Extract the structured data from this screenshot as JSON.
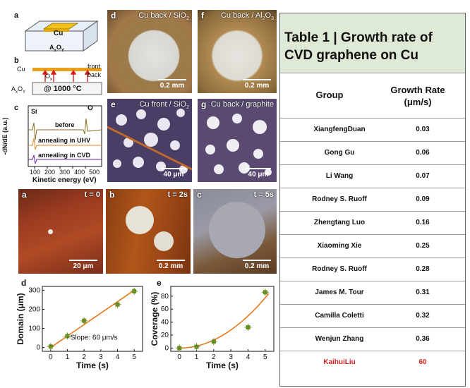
{
  "panel_labels": {
    "a": "a",
    "b": "b",
    "c": "c",
    "d": "d",
    "f": "f",
    "e": "e",
    "g": "g",
    "a2": "a",
    "b2": "b",
    "c2": "c",
    "d2": "d",
    "e2": "e"
  },
  "schematic_a": {
    "cu": "Cu",
    "substrate": "A",
    "substrate_sub1": "x",
    "substrate_o": "O",
    "substrate_sub2": "Y"
  },
  "schematic_b": {
    "cu": "Cu",
    "front": "front",
    "back": "back",
    "o": "O",
    "o_sub": "x",
    "substrate": "A",
    "substrate_sub1": "x",
    "substrate_o": "O",
    "substrate_sub2": "Y",
    "temperature": "@ 1000 °C"
  },
  "spectrum_c": {
    "ylabel": "-dN/dE (a.u.)",
    "xlabel": "Kinetic energy (eV)",
    "ticks": [
      "100",
      "200",
      "300",
      "400",
      "500"
    ],
    "peak_si": "Si",
    "peak_o": "O",
    "traces": [
      "before",
      "annealing in UHV",
      "annealing in CVD"
    ]
  },
  "micrographs_top": [
    {
      "caption": "Cu back / SiO",
      "caption_sub": "2",
      "scale": "0.2 mm"
    },
    {
      "caption": "Cu back / Al",
      "caption_sub": "2",
      "caption_tail": "O",
      "caption_sub2": "3",
      "scale": "0.2 mm"
    },
    {
      "caption": "Cu front / SiO",
      "caption_sub": "2",
      "scale": "40 μm"
    },
    {
      "caption": "Cu back / graphite",
      "scale": "40 μm"
    }
  ],
  "micrographs_time": [
    {
      "time": "t = 0",
      "scale": "20 μm"
    },
    {
      "time": "t = 2s",
      "scale": "0.2 mm"
    },
    {
      "time": "t = 5s",
      "scale": "0.2 mm"
    }
  ],
  "chart_data": [
    {
      "type": "scatter",
      "xlabel": "Time (s)",
      "ylabel": "Domain (μm)",
      "annotation": "Slope: 60 μm/s",
      "x": [
        0,
        1,
        2,
        4,
        5
      ],
      "y": [
        5,
        60,
        140,
        225,
        295
      ],
      "fit": {
        "x": [
          0,
          5
        ],
        "y": [
          0,
          300
        ]
      },
      "xticks": [
        "0",
        "1",
        "2",
        "3",
        "4",
        "5"
      ],
      "yticks": [
        "0",
        "100",
        "200",
        "300"
      ],
      "xlim": [
        -0.5,
        5.5
      ],
      "ylim": [
        -20,
        320
      ]
    },
    {
      "type": "scatter",
      "xlabel": "Time (s)",
      "ylabel": "Coverage (%)",
      "x": [
        0,
        1,
        2,
        4,
        5
      ],
      "y": [
        0,
        2,
        10,
        32,
        86
      ],
      "fit_curve": "quadratic",
      "xticks": [
        "0",
        "1",
        "2",
        "3",
        "4",
        "5"
      ],
      "yticks": [
        "0",
        "20",
        "40",
        "60",
        "80"
      ],
      "xlim": [
        -0.5,
        5.5
      ],
      "ylim": [
        -5,
        95
      ]
    }
  ],
  "table": {
    "title_line1": "Table 1 |  Growth rate of",
    "title_line2": "CVD graphene on Cu",
    "col_group": "Group",
    "col_rate_line1": "Growth Rate",
    "col_rate_line2": "(μm/s)",
    "rows": [
      {
        "group": "XiangfengDuan",
        "rate": "0.03"
      },
      {
        "group": "Gong Gu",
        "rate": "0.06"
      },
      {
        "group": "Li Wang",
        "rate": "0.07"
      },
      {
        "group": "Rodney S. Ruoff",
        "rate": "0.09"
      },
      {
        "group": "Zhengtang Luo",
        "rate": "0.16"
      },
      {
        "group": "Xiaoming Xie",
        "rate": "0.25"
      },
      {
        "group": "Rodney S. Ruoff",
        "rate": "0.28"
      },
      {
        "group": "James M. Tour",
        "rate": "0.31"
      },
      {
        "group": "Camilla Coletti",
        "rate": "0.32"
      },
      {
        "group": "Wenjun Zhang",
        "rate": "0.36"
      },
      {
        "group": "KaihuiLiu",
        "rate": "60",
        "highlight": true
      }
    ]
  },
  "colors": {
    "accent": "#e87a1c",
    "highlight": "#d42020",
    "point": "#6b8e23",
    "header_bg": "#dfead6"
  }
}
